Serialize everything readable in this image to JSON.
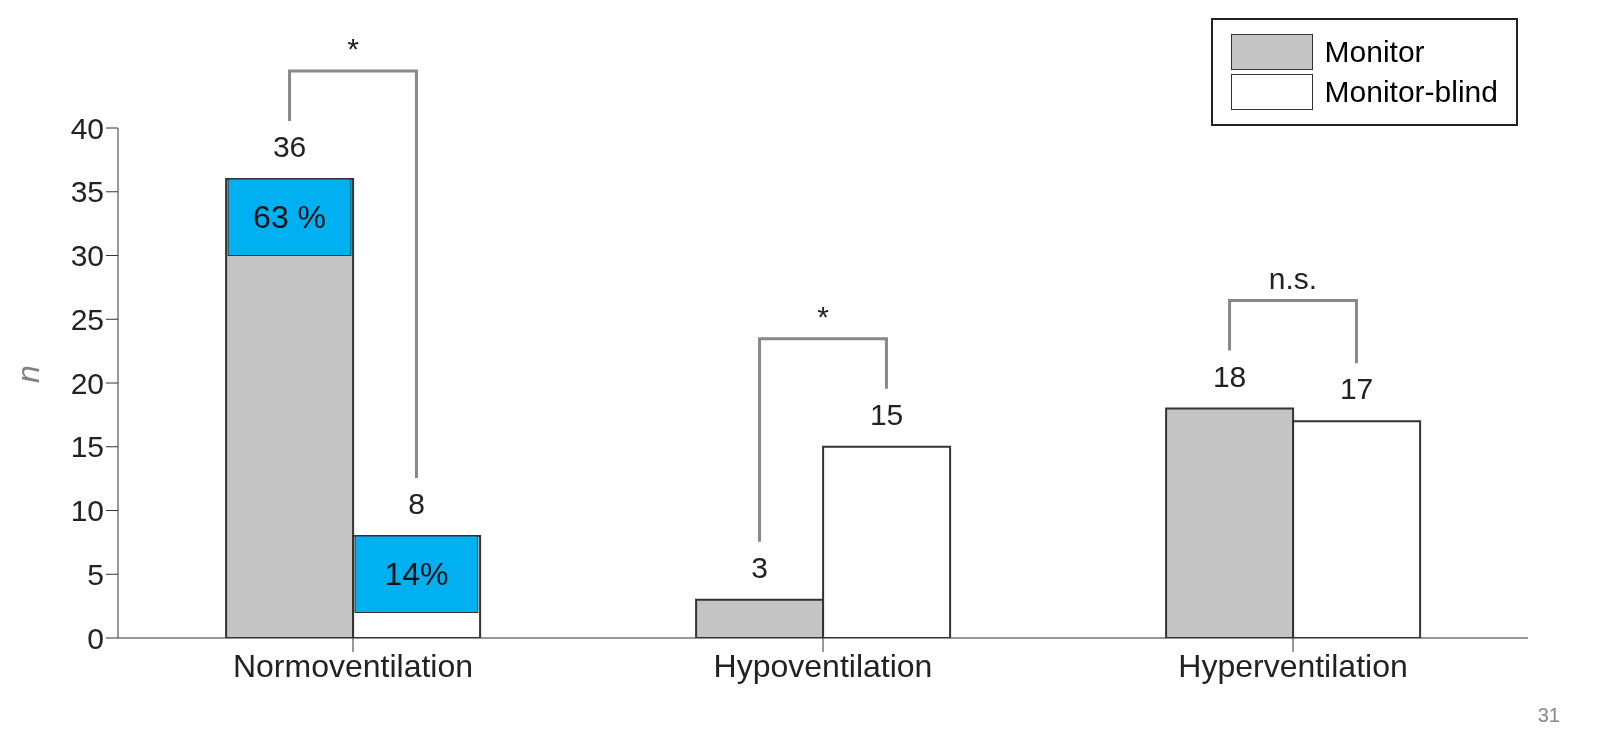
{
  "chart_data": {
    "type": "bar",
    "ylabel": "n",
    "categories": [
      "Normoventilation",
      "Hypoventilation",
      "Hyperventilation"
    ],
    "series": [
      {
        "name": "Monitor",
        "color": "#c4c4c4",
        "values": [
          36,
          3,
          18
        ]
      },
      {
        "name": "Monitor-blind",
        "color": "#ffffff",
        "values": [
          8,
          15,
          17
        ]
      }
    ],
    "ylim": [
      0,
      40
    ],
    "yticks": [
      0,
      5,
      10,
      15,
      20,
      25,
      30,
      35,
      40
    ],
    "grid": false,
    "legend": "top right",
    "data_labels": true,
    "annotations": [
      "*",
      "*",
      "n.s.",
      {
        "text": "63 %",
        "x": "Normoventilation",
        "y": 33
      },
      {
        "text": "14%",
        "x": "Normoventilation",
        "y": 5
      },
      "31"
    ]
  }
}
